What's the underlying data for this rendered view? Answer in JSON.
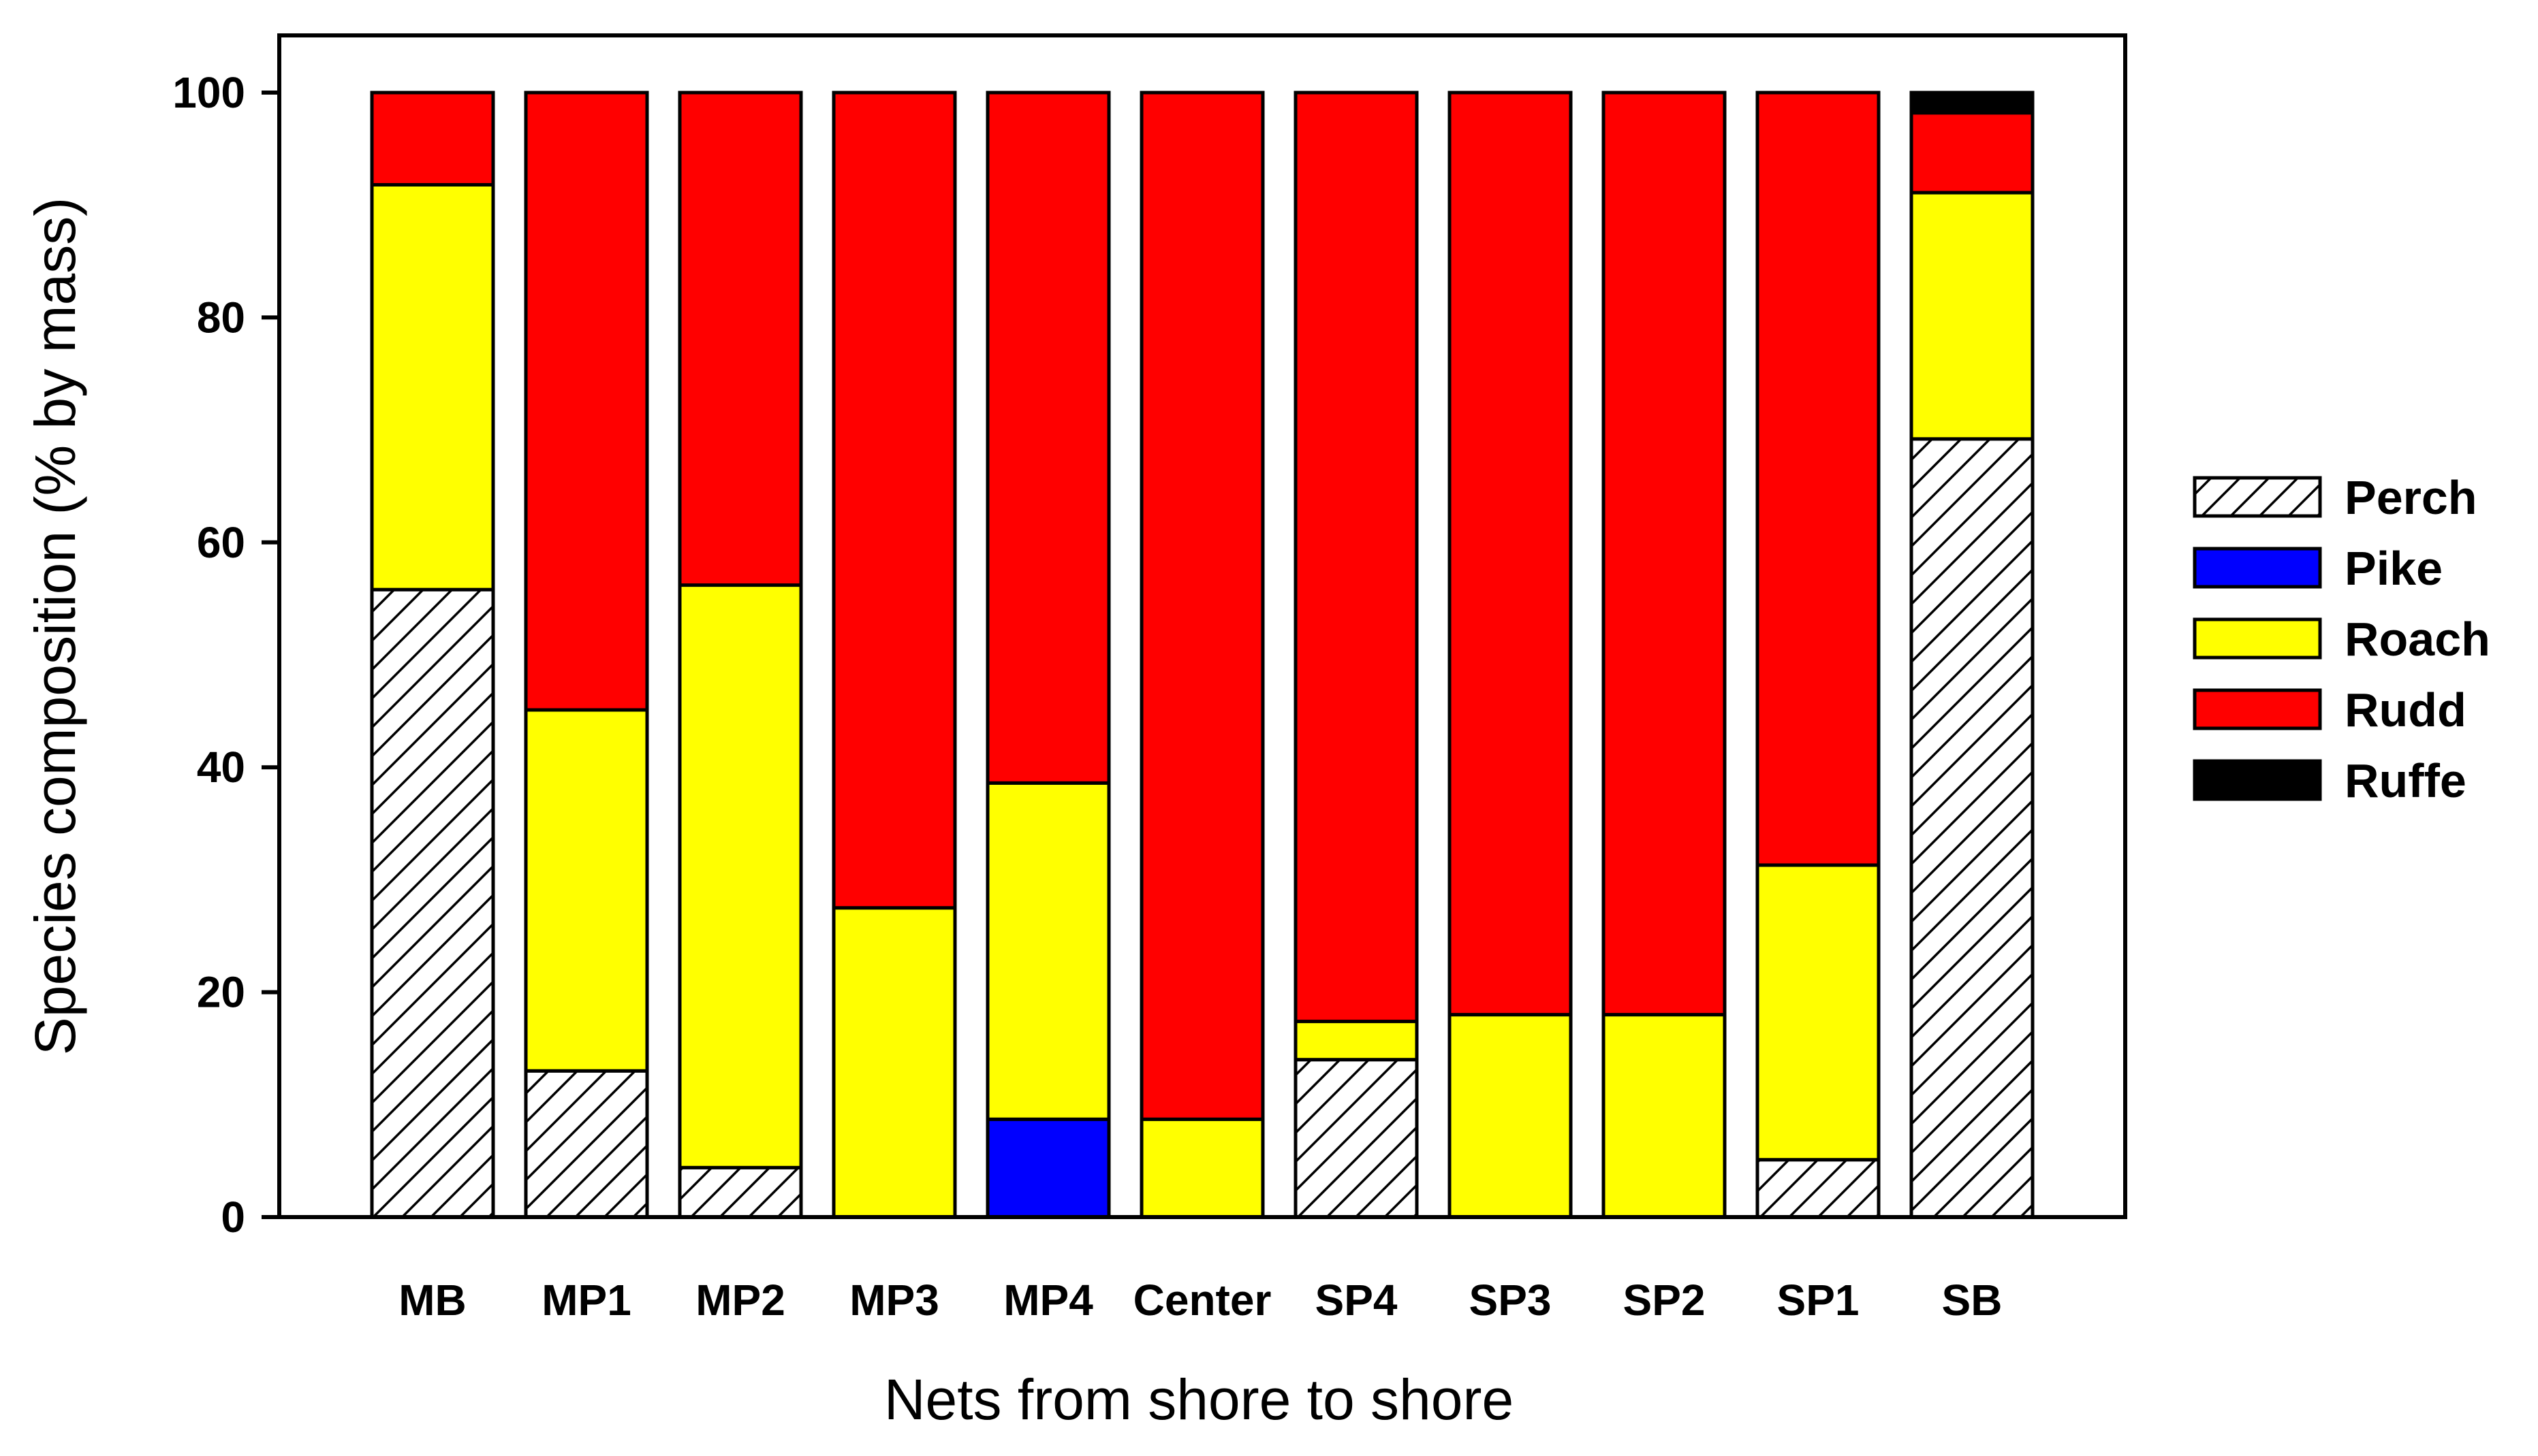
{
  "chart_data": {
    "type": "bar",
    "stacked": true,
    "xlabel": "Nets from shore to shore",
    "ylabel": "Species composition (% by mass)",
    "ylim": [
      0,
      100
    ],
    "yticks": [
      0,
      20,
      40,
      60,
      80,
      100
    ],
    "categories": [
      "MB",
      "MP1",
      "MP2",
      "MP3",
      "MP4",
      "Center",
      "SP4",
      "SP3",
      "SP2",
      "SP1",
      "SB"
    ],
    "series": [
      {
        "name": "Perch",
        "color": "#ffffff",
        "pattern": "diagonal-hatch",
        "values": [
          55.8,
          13.0,
          4.4,
          0,
          0,
          0,
          14.0,
          0,
          0,
          5.1,
          69.2
        ]
      },
      {
        "name": "Pike",
        "color": "#0000ff",
        "values": [
          0,
          0,
          0,
          0,
          8.7,
          0,
          0,
          0,
          0,
          0,
          0
        ]
      },
      {
        "name": "Roach",
        "color": "#ffff00",
        "values": [
          36.0,
          32.1,
          51.8,
          27.5,
          29.9,
          8.7,
          3.4,
          18.0,
          18.0,
          26.2,
          21.9
        ]
      },
      {
        "name": "Rudd",
        "color": "#ff0000",
        "values": [
          8.2,
          54.9,
          43.8,
          72.5,
          61.4,
          91.3,
          82.6,
          82.0,
          82.0,
          68.7,
          7.1
        ]
      },
      {
        "name": "Ruffe",
        "color": "#000000",
        "values": [
          0,
          0,
          0,
          0,
          0,
          0,
          0,
          0,
          0,
          0,
          1.8
        ]
      }
    ],
    "legend_position": "right",
    "grid": false
  }
}
